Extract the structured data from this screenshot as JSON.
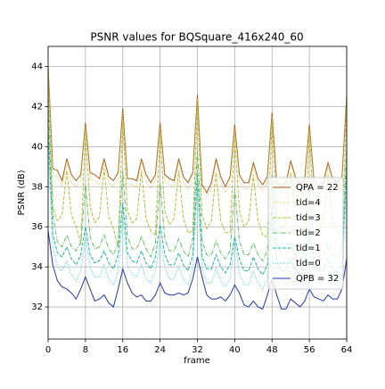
{
  "chart_data": {
    "type": "line",
    "title": "PSNR values for BQSquare_416x240_60",
    "x_label": "frame",
    "y_label": "PSNR (dB)",
    "x": [
      0,
      1,
      2,
      3,
      4,
      5,
      6,
      7,
      8,
      9,
      10,
      11,
      12,
      13,
      14,
      15,
      16,
      17,
      18,
      19,
      20,
      21,
      22,
      23,
      24,
      25,
      26,
      27,
      28,
      29,
      30,
      31,
      32,
      33,
      34,
      35,
      36,
      37,
      38,
      39,
      40,
      41,
      42,
      43,
      44,
      45,
      46,
      47,
      48,
      49,
      50,
      51,
      52,
      53,
      54,
      55,
      56,
      57,
      58,
      59,
      60,
      61,
      62,
      63,
      64
    ],
    "xlim": [
      0,
      64
    ],
    "xticks": [
      0,
      8,
      16,
      24,
      32,
      40,
      48,
      56,
      64
    ],
    "ylim": [
      30.4,
      45
    ],
    "yticks": [
      32,
      34,
      36,
      38,
      40,
      42,
      44
    ],
    "grid": true,
    "legend": "lower right",
    "series": [
      {
        "name": "QPA = 22",
        "color": "#a6611a",
        "linestyle": "solid",
        "values": [
          44.0,
          38.9,
          38.8,
          38.3,
          39.4,
          38.6,
          38.3,
          38.6,
          41.2,
          38.7,
          38.6,
          38.4,
          39.4,
          38.5,
          38.3,
          38.7,
          41.9,
          38.4,
          38.4,
          38.3,
          39.4,
          38.6,
          38.2,
          38.6,
          41.2,
          38.6,
          38.4,
          38.3,
          39.4,
          38.5,
          38.2,
          38.7,
          42.6,
          38.1,
          37.7,
          38.2,
          39.4,
          38.5,
          38.0,
          38.5,
          41.1,
          38.6,
          38.2,
          38.2,
          39.2,
          38.4,
          38.1,
          38.5,
          41.7,
          38.2,
          38.0,
          38.2,
          39.3,
          38.5,
          38.1,
          38.4,
          41.1,
          38.3,
          38.1,
          38.2,
          39.2,
          38.4,
          38.2,
          38.5,
          42.5
        ]
      },
      {
        "name": "tid=4",
        "color": "#e3c14d",
        "linestyle": "dotted",
        "values": [
          44.0,
          38.6,
          38.5,
          38.0,
          39.2,
          38.2,
          38.0,
          38.3,
          41.0,
          38.4,
          38.3,
          38.1,
          39.2,
          38.2,
          38.0,
          38.4,
          41.7,
          38.1,
          38.1,
          38.0,
          39.2,
          38.3,
          37.9,
          38.3,
          41.0,
          38.3,
          38.1,
          38.0,
          39.2,
          38.2,
          37.9,
          38.4,
          42.4,
          37.8,
          37.5,
          37.9,
          39.2,
          38.2,
          37.7,
          38.2,
          40.9,
          38.3,
          37.9,
          37.9,
          39.0,
          38.1,
          37.8,
          38.2,
          41.5,
          37.9,
          37.7,
          37.9,
          39.1,
          38.2,
          37.8,
          38.1,
          40.9,
          38.0,
          37.8,
          37.9,
          39.0,
          38.1,
          37.9,
          38.2,
          42.3
        ]
      },
      {
        "name": "tid=3",
        "color": "#b5bd3c",
        "linestyle": "dashed",
        "values": [
          43.6,
          37.0,
          36.3,
          36.6,
          38.8,
          36.6,
          36.0,
          35.2,
          40.6,
          37.0,
          36.2,
          36.5,
          38.9,
          36.5,
          35.9,
          35.0,
          41.3,
          36.8,
          36.2,
          36.4,
          38.8,
          36.4,
          35.8,
          35.6,
          40.6,
          36.8,
          36.1,
          36.4,
          38.8,
          36.4,
          35.7,
          35.8,
          42.0,
          36.6,
          35.9,
          36.3,
          38.7,
          36.3,
          35.7,
          35.7,
          40.5,
          36.8,
          36.0,
          36.3,
          38.6,
          36.3,
          35.6,
          35.5,
          41.2,
          36.6,
          35.9,
          36.2,
          38.7,
          36.3,
          35.7,
          35.6,
          40.5,
          36.6,
          35.9,
          36.2,
          38.6,
          36.2,
          35.7,
          35.8,
          41.9
        ]
      },
      {
        "name": "tid=2",
        "color": "#5cbf5c",
        "linestyle": "dashdot",
        "values": [
          42.2,
          36.6,
          35.2,
          35.0,
          35.6,
          35.0,
          34.8,
          35.2,
          38.1,
          35.5,
          34.9,
          35.0,
          35.6,
          34.9,
          34.6,
          35.2,
          38.8,
          35.5,
          34.9,
          34.9,
          35.5,
          34.9,
          34.5,
          35.2,
          38.2,
          35.4,
          34.8,
          34.8,
          35.4,
          34.8,
          34.5,
          35.4,
          39.8,
          35.3,
          34.6,
          34.6,
          35.3,
          34.7,
          34.4,
          34.8,
          37.9,
          35.3,
          34.6,
          34.6,
          35.2,
          34.6,
          34.3,
          34.8,
          38.6,
          35.2,
          34.6,
          34.6,
          35.2,
          34.6,
          34.3,
          34.8,
          38.0,
          35.2,
          34.5,
          34.6,
          35.2,
          34.6,
          34.4,
          34.9,
          40.0
        ]
      },
      {
        "name": "tid=1",
        "color": "#1fb3a6",
        "linestyle": "dashed",
        "values": [
          41.0,
          35.6,
          34.7,
          34.5,
          35.0,
          34.4,
          34.1,
          34.6,
          36.0,
          34.6,
          34.2,
          34.3,
          34.8,
          34.2,
          33.9,
          34.6,
          37.2,
          34.7,
          34.3,
          34.2,
          34.8,
          34.2,
          33.9,
          34.5,
          36.1,
          34.6,
          34.1,
          34.1,
          34.7,
          34.1,
          33.8,
          34.6,
          38.6,
          34.5,
          33.9,
          33.9,
          34.6,
          34.0,
          33.7,
          34.1,
          35.5,
          34.4,
          33.8,
          33.8,
          34.5,
          33.9,
          33.6,
          34.1,
          37.0,
          34.3,
          33.8,
          33.8,
          34.4,
          33.9,
          33.6,
          34.1,
          36.0,
          34.3,
          33.8,
          33.8,
          34.4,
          33.9,
          33.7,
          34.2,
          39.0
        ]
      },
      {
        "name": "tid=0",
        "color": "#3fd0da",
        "linestyle": "dotted",
        "values": [
          40.0,
          35.0,
          34.0,
          33.8,
          34.3,
          33.6,
          33.3,
          33.8,
          35.5,
          34.0,
          33.5,
          33.5,
          34.1,
          33.4,
          33.1,
          33.8,
          36.5,
          34.1,
          33.6,
          33.5,
          34.1,
          33.4,
          33.2,
          33.8,
          35.3,
          34.0,
          33.4,
          33.4,
          34.0,
          33.4,
          33.1,
          33.9,
          38.0,
          33.9,
          33.2,
          33.2,
          33.9,
          33.3,
          33.0,
          33.4,
          35.3,
          33.7,
          33.1,
          33.1,
          33.8,
          33.2,
          32.9,
          33.4,
          36.5,
          33.6,
          33.1,
          33.1,
          33.7,
          33.2,
          32.9,
          33.4,
          35.5,
          33.6,
          33.1,
          33.1,
          33.7,
          33.2,
          33.0,
          33.5,
          38.0
        ]
      },
      {
        "name": "QPB = 32",
        "color": "#2339a8",
        "linestyle": "solid",
        "values": [
          35.8,
          34.1,
          33.3,
          33.0,
          32.9,
          32.7,
          32.4,
          32.9,
          33.5,
          32.9,
          32.3,
          32.4,
          32.6,
          32.2,
          32.0,
          32.9,
          33.9,
          33.2,
          32.7,
          32.5,
          32.6,
          32.3,
          32.3,
          32.6,
          33.2,
          32.7,
          32.6,
          32.6,
          32.7,
          32.6,
          32.7,
          33.4,
          34.5,
          33.5,
          32.6,
          32.4,
          32.4,
          32.5,
          32.3,
          32.6,
          33.1,
          32.7,
          32.1,
          32.0,
          32.3,
          32.0,
          31.9,
          32.6,
          33.4,
          32.6,
          31.9,
          31.9,
          32.4,
          32.2,
          32.0,
          32.3,
          32.9,
          32.5,
          32.4,
          32.3,
          32.6,
          32.4,
          32.4,
          32.9,
          34.4
        ]
      }
    ]
  }
}
